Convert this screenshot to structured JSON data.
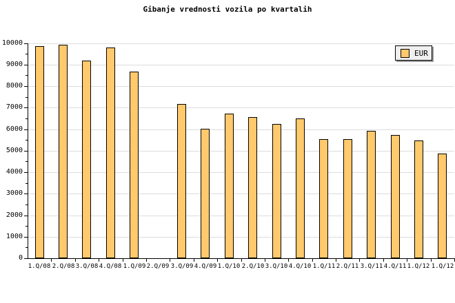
{
  "title": "Gibanje vrednosti vozila po kvartalih",
  "legend": {
    "label": "EUR"
  },
  "colors": {
    "bar_fill": "#FFC96C",
    "bar_border": "#000000",
    "grid": "#DCDCDC",
    "axis": "#000000",
    "legend_bg": "#EFEFEF",
    "legend_shadow": "#999999",
    "background": "#FFFFFF"
  },
  "chart_data": {
    "type": "bar",
    "title": "Gibanje vrednosti vozila po kvartalih",
    "xlabel": "",
    "ylabel": "",
    "categories": [
      "1.Q/08",
      "2.Q/08",
      "3.Q/08",
      "4.Q/08",
      "1.Q/09",
      "2.Q/09",
      "3.Q/09",
      "4.Q/09",
      "1.Q/10",
      "2.Q/10",
      "3.Q/10",
      "4.Q/10",
      "1.Q/11",
      "2.Q/11",
      "3.Q/11",
      "4.Q/11",
      "1.Q/12",
      "1.Q/12"
    ],
    "series": [
      {
        "name": "EUR",
        "values": [
          9840,
          9930,
          9170,
          9780,
          8680,
          null,
          7180,
          6030,
          6720,
          6570,
          6250,
          6510,
          5520,
          5540,
          5930,
          5720,
          5470,
          4870
        ]
      }
    ],
    "ylim": [
      0,
      10000
    ],
    "ytick_step": 1000,
    "yminor_step": 500,
    "grid": "horizontal-major",
    "legend_position": "top-right",
    "missing_categories": [
      "2.Q/09"
    ]
  }
}
